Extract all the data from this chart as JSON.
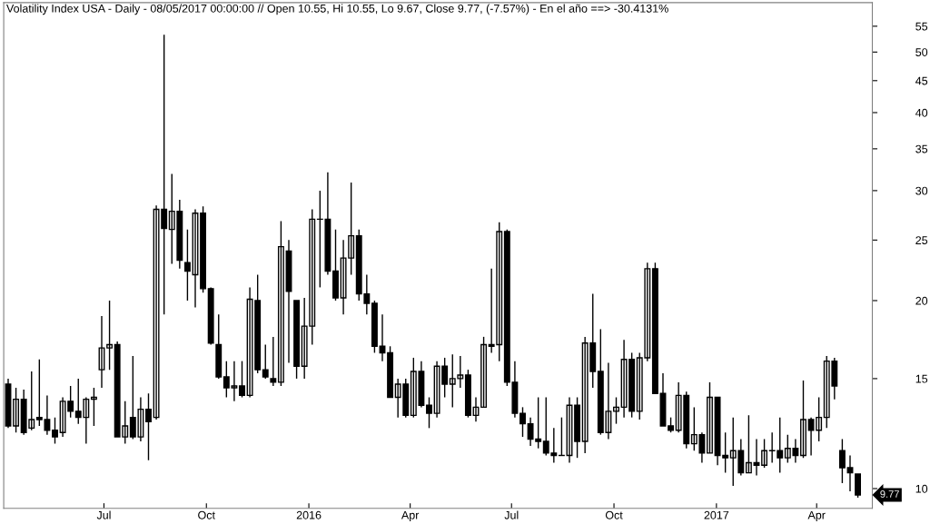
{
  "chart_data": {
    "type": "candlestick",
    "title": "Volatility Index USA - Daily - 08/05/2017 00:00:00 // Open 10.55, Hi 10.55, Lo 9.67, Close 9.77, (-7.57%) - En el año ==> -30.4131%",
    "color": "#000000",
    "x": [
      "2015-04-06",
      "2015-04-13",
      "2015-04-20",
      "2015-04-27",
      "2015-05-04",
      "2015-05-11",
      "2015-05-18",
      "2015-05-25",
      "2015-06-01",
      "2015-06-08",
      "2015-06-15",
      "2015-06-22",
      "2015-06-29",
      "2015-07-06",
      "2015-07-13",
      "2015-07-20",
      "2015-07-27",
      "2015-08-03",
      "2015-08-10",
      "2015-08-17",
      "2015-08-24",
      "2015-08-31",
      "2015-09-07",
      "2015-09-14",
      "2015-09-21",
      "2015-09-28",
      "2015-10-05",
      "2015-10-12",
      "2015-10-19",
      "2015-10-26",
      "2015-11-02",
      "2015-11-09",
      "2015-11-16",
      "2015-11-23",
      "2015-11-30",
      "2015-12-07",
      "2015-12-14",
      "2015-12-21",
      "2015-12-28",
      "2016-01-04",
      "2016-01-11",
      "2016-01-18",
      "2016-01-25",
      "2016-02-01",
      "2016-02-08",
      "2016-02-15",
      "2016-02-22",
      "2016-02-29",
      "2016-03-07",
      "2016-03-14",
      "2016-03-21",
      "2016-03-28",
      "2016-04-04",
      "2016-04-11",
      "2016-04-18",
      "2016-04-25",
      "2016-05-02",
      "2016-05-09",
      "2016-05-16",
      "2016-05-23",
      "2016-05-30",
      "2016-06-06",
      "2016-06-13",
      "2016-06-20",
      "2016-06-27",
      "2016-07-04",
      "2016-07-11",
      "2016-07-18",
      "2016-07-25",
      "2016-08-01",
      "2016-08-08",
      "2016-08-15",
      "2016-08-22",
      "2016-08-29",
      "2016-09-05",
      "2016-09-12",
      "2016-09-19",
      "2016-09-26",
      "2016-10-03",
      "2016-10-10",
      "2016-10-17",
      "2016-10-24",
      "2016-10-31",
      "2016-11-07",
      "2016-11-14",
      "2016-11-21",
      "2016-11-28",
      "2016-12-05",
      "2016-12-12",
      "2016-12-19",
      "2016-12-26",
      "2017-01-02",
      "2017-01-09",
      "2017-01-16",
      "2017-01-23",
      "2017-01-30",
      "2017-02-06",
      "2017-02-13",
      "2017-02-20",
      "2017-02-27",
      "2017-03-06",
      "2017-03-13",
      "2017-03-20",
      "2017-03-27",
      "2017-04-03",
      "2017-04-10",
      "2017-04-17",
      "2017-04-24",
      "2017-05-01",
      "2017-05-08"
    ],
    "ohlc": [
      [
        14.7,
        15,
        12.5,
        12.6
      ],
      [
        12.6,
        14.5,
        12.3,
        13.9
      ],
      [
        13.9,
        14.4,
        12.2,
        12.3
      ],
      [
        12.5,
        15.4,
        12.4,
        12.9
      ],
      [
        13.0,
        16.1,
        12.6,
        12.9
      ],
      [
        12.9,
        14.1,
        12.2,
        12.4
      ],
      [
        12.4,
        13.0,
        11.8,
        12.1
      ],
      [
        12.3,
        14.0,
        12.1,
        13.8
      ],
      [
        13.8,
        14.6,
        13.0,
        13.3
      ],
      [
        13.3,
        15.0,
        12.7,
        13.0
      ],
      [
        13.0,
        14.0,
        11.8,
        13.9
      ],
      [
        13.9,
        14.5,
        12.6,
        14.0
      ],
      [
        15.5,
        18.9,
        14.5,
        16.8
      ],
      [
        16.8,
        20.0,
        15.5,
        17.0
      ],
      [
        17.0,
        17.2,
        12.1,
        12.1
      ],
      [
        12.1,
        13.8,
        11.8,
        12.6
      ],
      [
        13.0,
        16.3,
        12.0,
        12.1
      ],
      [
        12.1,
        14.0,
        11.9,
        13.4
      ],
      [
        13.4,
        14.2,
        11.1,
        12.8
      ],
      [
        13.0,
        28.4,
        12.9,
        28.0
      ],
      [
        28,
        53.3,
        19,
        26.1
      ],
      [
        26,
        31.9,
        22.9,
        27.8
      ],
      [
        27.8,
        29,
        22.5,
        23.2
      ],
      [
        23,
        26,
        20,
        22.3
      ],
      [
        22,
        28,
        19.5,
        27.6
      ],
      [
        27.6,
        28.3,
        20.6,
        20.9
      ],
      [
        20.9,
        21,
        17,
        17.1
      ],
      [
        17,
        19,
        15,
        15.1
      ],
      [
        15.1,
        16,
        14,
        14.5
      ],
      [
        14.5,
        16,
        13.8,
        14.6
      ],
      [
        14.6,
        16,
        14,
        14.1
      ],
      [
        14.1,
        21,
        14,
        20.1
      ],
      [
        20,
        22,
        15.3,
        15.5
      ],
      [
        15.5,
        17,
        15,
        15.1
      ],
      [
        15,
        17.5,
        14.6,
        14.8
      ],
      [
        14.8,
        26.8,
        14.6,
        24.4
      ],
      [
        24,
        25,
        15.9,
        20.7
      ],
      [
        20,
        20,
        15,
        15.7
      ],
      [
        15.7,
        20.2,
        15,
        18.2
      ],
      [
        18.2,
        28,
        17,
        27
      ],
      [
        27,
        30,
        21,
        27.0
      ],
      [
        27,
        32.1,
        22,
        22.3
      ],
      [
        22.3,
        26,
        20,
        20.2
      ],
      [
        20.2,
        25,
        19,
        23.4
      ],
      [
        23.4,
        30.9,
        22,
        25.4
      ],
      [
        25.4,
        26,
        20,
        20.5
      ],
      [
        20.5,
        22,
        19,
        19.8
      ],
      [
        19.8,
        20,
        16.5,
        16.9
      ],
      [
        16.9,
        19,
        16,
        16.5
      ],
      [
        16.5,
        16.9,
        14,
        14.0
      ],
      [
        14,
        15,
        13,
        14.7
      ],
      [
        14.7,
        15,
        13,
        13.1
      ],
      [
        13.1,
        16.2,
        13,
        15.4
      ],
      [
        15.4,
        16,
        13.5,
        13.6
      ],
      [
        13.6,
        14,
        12.5,
        13.2
      ],
      [
        13.2,
        16,
        13,
        15.7
      ],
      [
        15.7,
        16.2,
        14,
        14.7
      ],
      [
        14.7,
        16.4,
        13.5,
        15.0
      ],
      [
        15.0,
        16.3,
        14.5,
        15.2
      ],
      [
        15.2,
        15.5,
        13,
        13.1
      ],
      [
        13.1,
        14,
        12.8,
        13.5
      ],
      [
        13.5,
        17.5,
        13.5,
        17.0
      ],
      [
        17,
        22.5,
        16.5,
        16.9
      ],
      [
        17,
        26.7,
        16,
        25.8
      ],
      [
        25.8,
        26.0,
        14.6,
        14.8
      ],
      [
        14.8,
        16,
        13,
        13.2
      ],
      [
        13.2,
        13.5,
        12.1,
        12.7
      ],
      [
        12.7,
        13,
        11.7,
        12.0
      ],
      [
        12,
        14,
        11.6,
        11.9
      ],
      [
        11.9,
        14,
        11.3,
        11.4
      ],
      [
        11.4,
        12.5,
        11.0,
        11.3
      ],
      [
        11.3,
        13,
        11.3,
        11.3
      ],
      [
        11.3,
        14,
        11.0,
        13.6
      ],
      [
        13.6,
        14,
        11.2,
        11.9
      ],
      [
        11.9,
        17.5,
        11.4,
        17.1
      ],
      [
        17.1,
        20.5,
        14.5,
        15.4
      ],
      [
        15.4,
        18,
        12.2,
        12.3
      ],
      [
        12.3,
        15.9,
        12,
        13.3
      ],
      [
        13.3,
        14,
        12.7,
        13.5
      ],
      [
        13.5,
        17.3,
        13,
        16.1
      ],
      [
        16.1,
        16.5,
        13,
        13.3
      ],
      [
        13.3,
        16.5,
        12.9,
        16.2
      ],
      [
        16.2,
        23,
        16,
        22.5
      ],
      [
        22.5,
        23,
        14.2,
        14.2
      ],
      [
        14.2,
        15.3,
        12.6,
        12.6
      ],
      [
        12.6,
        13,
        12.3,
        12.4
      ],
      [
        12.4,
        14.8,
        12.3,
        14.1
      ],
      [
        14.1,
        14.3,
        11.6,
        11.8
      ],
      [
        11.8,
        13.5,
        11.5,
        12.2
      ],
      [
        12.2,
        12.3,
        11.0,
        11.4
      ],
      [
        11.4,
        14.8,
        11.4,
        14.0
      ],
      [
        14.0,
        14.0,
        10.9,
        11.3
      ],
      [
        11.3,
        12.3,
        10.6,
        11.2
      ],
      [
        11.2,
        13,
        10.1,
        11.5
      ],
      [
        11.5,
        12,
        10.5,
        10.6
      ],
      [
        10.6,
        13.1,
        10.6,
        11.0
      ],
      [
        11.0,
        12,
        10.5,
        10.9
      ],
      [
        10.9,
        12,
        10.8,
        11.5
      ],
      [
        11.5,
        12.3,
        11.0,
        11.5
      ],
      [
        11.5,
        13,
        10.6,
        11.2
      ],
      [
        11.2,
        12.2,
        11.0,
        11.6
      ],
      [
        11.6,
        12,
        11.0,
        11.3
      ],
      [
        11.3,
        14.9,
        11.2,
        12.9
      ],
      [
        12.9,
        13,
        11.3,
        12.4
      ],
      [
        12.4,
        14,
        11.9,
        13.0
      ],
      [
        13,
        16.3,
        12.5,
        16.0
      ],
      [
        16,
        16.2,
        13.9,
        14.6
      ],
      [
        11.5,
        12,
        10.2,
        10.8
      ],
      [
        10.8,
        11.3,
        9.9,
        10.6
      ],
      [
        10.55,
        10.55,
        9.67,
        9.77
      ]
    ],
    "log": true,
    "xlim": [
      "2015-04-02",
      "2017-05-21"
    ],
    "xticks": [
      {
        "value": "2015-07-01",
        "label": "Jul"
      },
      {
        "value": "2015-10-01",
        "label": "Oct"
      },
      {
        "value": "2016-01-01",
        "label": "2016"
      },
      {
        "value": "2016-04-01",
        "label": "Apr"
      },
      {
        "value": "2016-07-01",
        "label": "Jul"
      },
      {
        "value": "2016-10-01",
        "label": "Oct"
      },
      {
        "value": "2017-01-01",
        "label": "2017"
      },
      {
        "value": "2017-04-01",
        "label": "Apr"
      }
    ],
    "ylim": [
      9.3,
      60
    ],
    "yticks": [
      10,
      15,
      20,
      25,
      30,
      35,
      40,
      45,
      50,
      55
    ],
    "annotations": [
      "9.77"
    ]
  }
}
